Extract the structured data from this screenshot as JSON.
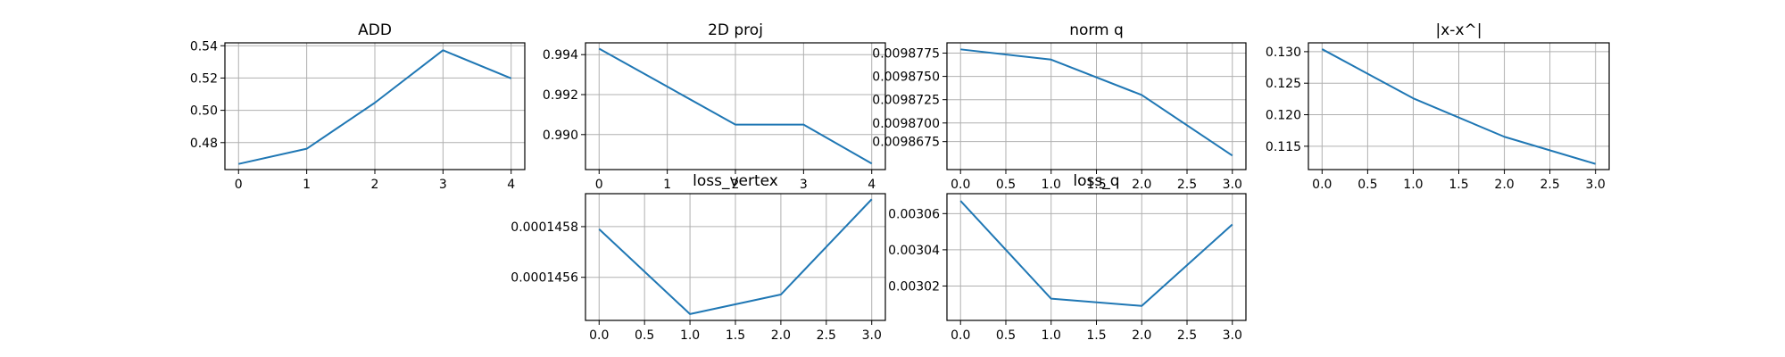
{
  "chart_data": [
    {
      "type": "line",
      "title": "ADD",
      "xlabel": "",
      "ylabel": "",
      "grid": true,
      "x": [
        0,
        1,
        2,
        3,
        4
      ],
      "xlim": [
        -0.2,
        4.2
      ],
      "ylim": [
        0.4633,
        0.5418
      ],
      "xticks": [
        0,
        1,
        2,
        3,
        4
      ],
      "xtick_labels": [
        "0",
        "1",
        "2",
        "3",
        "4"
      ],
      "yticks": [
        0.48,
        0.5,
        0.52,
        0.54
      ],
      "ytick_labels": [
        "0.48",
        "0.50",
        "0.52",
        "0.54"
      ],
      "series": [
        {
          "color": "#1f77b4",
          "values": [
            0.4668,
            0.4762,
            0.5047,
            0.5372,
            0.5198
          ]
        }
      ]
    },
    {
      "type": "line",
      "title": "2D proj",
      "xlabel": "",
      "ylabel": "",
      "grid": true,
      "x": [
        0,
        1,
        2,
        3,
        4
      ],
      "xlim": [
        -0.2,
        4.2
      ],
      "ylim": [
        0.98825,
        0.99459
      ],
      "xticks": [
        0,
        1,
        2,
        3,
        4
      ],
      "xtick_labels": [
        "0",
        "1",
        "2",
        "3",
        "4"
      ],
      "yticks": [
        0.99,
        0.992,
        0.994
      ],
      "ytick_labels": [
        "0.990",
        "0.992",
        "0.994"
      ],
      "series": [
        {
          "color": "#1f77b4",
          "values": [
            0.9943,
            0.9924,
            0.9905,
            0.9905,
            0.98855
          ]
        }
      ]
    },
    {
      "type": "line",
      "title": "norm q",
      "xlabel": "",
      "ylabel": "",
      "grid": true,
      "x": [
        0,
        1,
        2,
        3
      ],
      "xlim": [
        -0.15,
        3.15
      ],
      "ylim": [
        0.009865,
        0.0098786
      ],
      "xticks": [
        0,
        0.5,
        1,
        1.5,
        2,
        2.5,
        3
      ],
      "xtick_labels": [
        "0.0",
        "0.5",
        "1.0",
        "1.5",
        "2.0",
        "2.5",
        "3.0"
      ],
      "yticks": [
        0.009868,
        0.00987,
        0.0098725,
        0.009875,
        0.0098775
      ],
      "ytick_labels": [
        "0.0098675",
        "0.0098700",
        "0.0098725",
        "0.0098750",
        "0.0098775"
      ],
      "series": [
        {
          "color": "#1f77b4",
          "values": [
            0.0098779,
            0.0098768,
            0.009873,
            0.0098665
          ]
        }
      ]
    },
    {
      "type": "line",
      "title": "|x-x^|",
      "xlabel": "",
      "ylabel": "",
      "grid": true,
      "x": [
        0,
        1,
        2,
        3
      ],
      "xlim": [
        -0.15,
        3.15
      ],
      "ylim": [
        0.1113,
        0.1314
      ],
      "xticks": [
        0,
        0.5,
        1,
        1.5,
        2,
        2.5,
        3
      ],
      "xtick_labels": [
        "0.0",
        "0.5",
        "1.0",
        "1.5",
        "2.0",
        "2.5",
        "3.0"
      ],
      "yticks": [
        0.115,
        0.12,
        0.125,
        0.13
      ],
      "ytick_labels": [
        "0.115",
        "0.120",
        "0.125",
        "0.130"
      ],
      "series": [
        {
          "color": "#1f77b4",
          "values": [
            0.1304,
            0.1226,
            0.1165,
            0.1122
          ]
        }
      ]
    },
    {
      "type": "line",
      "title": "loss_vertex",
      "xlabel": "",
      "ylabel": "",
      "grid": true,
      "x": [
        0,
        1,
        2,
        3
      ],
      "xlim": [
        -0.15,
        3.15
      ],
      "ylim": [
        0.00014543,
        0.00014593
      ],
      "xticks": [
        0,
        0.5,
        1,
        1.5,
        2,
        2.5,
        3
      ],
      "xtick_labels": [
        "0.0",
        "0.5",
        "1.0",
        "1.5",
        "2.0",
        "2.5",
        "3.0"
      ],
      "yticks": [
        0.0001456,
        0.0001458
      ],
      "ytick_labels": [
        "0.0001456",
        "0.0001458"
      ],
      "series": [
        {
          "color": "#1f77b4",
          "values": [
            0.00014579,
            0.000145455,
            0.000145532,
            0.000145908
          ]
        }
      ]
    },
    {
      "type": "line",
      "title": "loss_q",
      "xlabel": "",
      "ylabel": "",
      "grid": true,
      "x": [
        0,
        1,
        2,
        3
      ],
      "xlim": [
        -0.15,
        3.15
      ],
      "ylim": [
        0.003001,
        0.003071
      ],
      "xticks": [
        0,
        0.5,
        1,
        1.5,
        2,
        2.5,
        3
      ],
      "xtick_labels": [
        "0.0",
        "0.5",
        "1.0",
        "1.5",
        "2.0",
        "2.5",
        "3.0"
      ],
      "yticks": [
        0.00302,
        0.00304,
        0.00306
      ],
      "ytick_labels": [
        "0.00302",
        "0.00304",
        "0.00306"
      ],
      "series": [
        {
          "color": "#1f77b4",
          "values": [
            0.003067,
            0.003013,
            0.003009,
            0.003054
          ]
        }
      ]
    }
  ]
}
